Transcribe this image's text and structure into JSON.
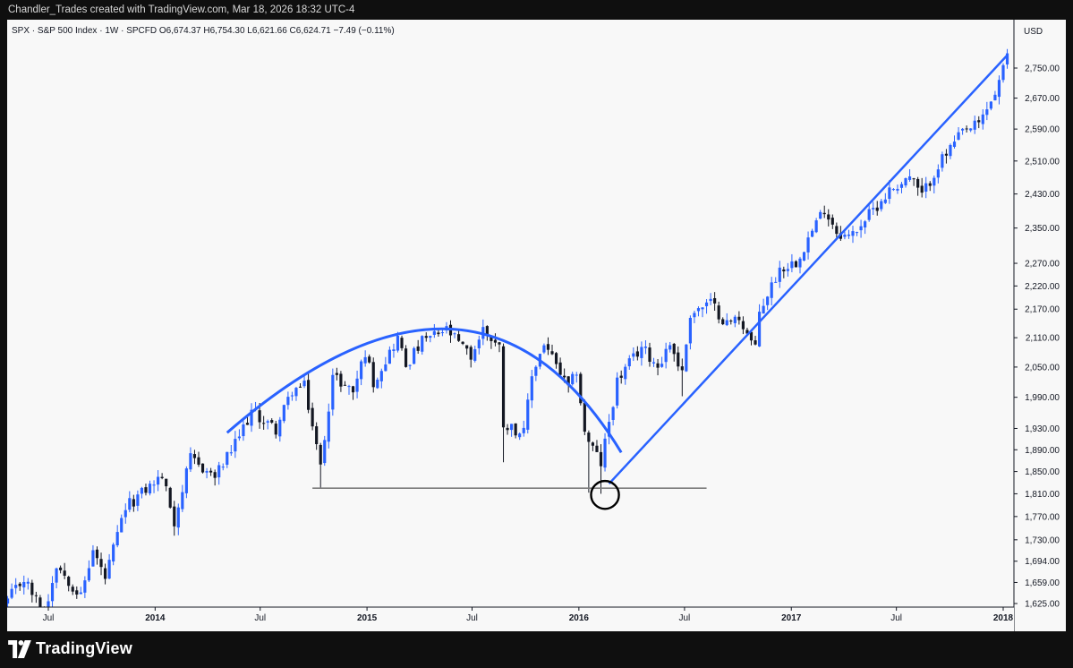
{
  "watermark": "Chandler_Trades created with TradingView.com, Mar 18, 2026 18:32 UTC-4",
  "info_bar": "SPX · S&P 500 Index · 1W · SPCFD  O6,674.37  H6,754.30  L6,621.66  C6,624.71  −7.49 (−0.11%)",
  "currency": "USD",
  "brand": "TradingView",
  "colors": {
    "up": "#2962ff",
    "down": "#131722",
    "trendline": "#2962ff",
    "support": "#7c7c7c",
    "background": "#f8f8f8"
  },
  "chart_data": {
    "type": "candlestick",
    "symbol": "SPX",
    "interval": "1W",
    "y_scale": "log",
    "ylim": [
      1625,
      2840
    ],
    "y_ticks": [
      1625,
      1659,
      1694,
      1730,
      1770,
      1810,
      1850,
      1890,
      1930,
      1990,
      2050,
      2110,
      2170,
      2220,
      2270,
      2350,
      2430,
      2510,
      2590,
      2670,
      2750
    ],
    "y_tick_labels": [
      "1,625.00",
      "1,659.00",
      "1,694.00",
      "1,730.00",
      "1,770.00",
      "1,810.00",
      "1,850.00",
      "1,890.00",
      "1,930.00",
      "1,990.00",
      "2,050.00",
      "2,110.00",
      "2,170.00",
      "2,220.00",
      "2,270.00",
      "2,350.00",
      "2,430.00",
      "2,510.00",
      "2,590.00",
      "2,670.00",
      "2,750.00"
    ],
    "x_ticks": [
      {
        "label": "Jul",
        "date": "2013-07-01",
        "bold": false
      },
      {
        "label": "2014",
        "date": "2014-01-01",
        "bold": true
      },
      {
        "label": "Jul",
        "date": "2014-07-01",
        "bold": false
      },
      {
        "label": "2015",
        "date": "2015-01-01",
        "bold": true
      },
      {
        "label": "Jul",
        "date": "2015-07-01",
        "bold": false
      },
      {
        "label": "2016",
        "date": "2016-01-01",
        "bold": true
      },
      {
        "label": "Jul",
        "date": "2016-07-01",
        "bold": false
      },
      {
        "label": "2017",
        "date": "2017-01-01",
        "bold": true
      },
      {
        "label": "Jul",
        "date": "2017-07-01",
        "bold": false
      },
      {
        "label": "2018",
        "date": "2018-01-01",
        "bold": true
      }
    ],
    "path": [
      [
        "2013-04-22",
        1630
      ],
      [
        "2013-05-20",
        1665
      ],
      [
        "2013-06-24",
        1606
      ],
      [
        "2013-07-15",
        1690
      ],
      [
        "2013-08-26",
        1636
      ],
      [
        "2013-09-16",
        1712
      ],
      [
        "2013-10-07",
        1665
      ],
      [
        "2013-11-11",
        1785
      ],
      [
        "2013-12-16",
        1818
      ],
      [
        "2014-01-13",
        1842
      ],
      [
        "2014-02-03",
        1761
      ],
      [
        "2014-03-03",
        1873
      ],
      [
        "2014-04-14",
        1840
      ],
      [
        "2014-05-19",
        1900
      ],
      [
        "2014-06-16",
        1962
      ],
      [
        "2014-07-28",
        1928
      ],
      [
        "2014-08-25",
        2003
      ],
      [
        "2014-09-15",
        2011
      ],
      [
        "2014-10-13",
        1858
      ],
      [
        "2014-11-03",
        2032
      ],
      [
        "2014-12-08",
        2002
      ],
      [
        "2014-12-29",
        2081
      ],
      [
        "2015-01-12",
        2020
      ],
      [
        "2015-02-23",
        2110
      ],
      [
        "2015-03-09",
        2053
      ],
      [
        "2015-04-06",
        2102
      ],
      [
        "2015-05-18",
        2126
      ],
      [
        "2015-06-29",
        2070
      ],
      [
        "2015-07-20",
        2128
      ],
      [
        "2015-08-17",
        2090
      ],
      [
        "2015-08-24",
        1940
      ],
      [
        "2015-09-28",
        1920
      ],
      [
        "2015-10-12",
        2033
      ],
      [
        "2015-11-02",
        2099
      ],
      [
        "2015-12-14",
        2005
      ],
      [
        "2015-12-28",
        2043
      ],
      [
        "2016-01-11",
        1921
      ],
      [
        "2016-02-08",
        1864
      ],
      [
        "2016-03-07",
        2022
      ],
      [
        "2016-04-18",
        2091
      ],
      [
        "2016-05-16",
        2052
      ],
      [
        "2016-06-06",
        2099
      ],
      [
        "2016-06-27",
        2037
      ],
      [
        "2016-07-11",
        2161
      ],
      [
        "2016-08-15",
        2183
      ],
      [
        "2016-09-12",
        2139
      ],
      [
        "2016-10-03",
        2153
      ],
      [
        "2016-10-31",
        2085
      ],
      [
        "2016-11-07",
        2164
      ],
      [
        "2016-12-12",
        2258
      ],
      [
        "2017-01-09",
        2274
      ],
      [
        "2017-02-27",
        2396
      ],
      [
        "2017-03-20",
        2343
      ],
      [
        "2017-04-10",
        2328
      ],
      [
        "2017-05-15",
        2381
      ],
      [
        "2017-06-19",
        2438
      ],
      [
        "2017-07-24",
        2472
      ],
      [
        "2017-08-14",
        2425
      ],
      [
        "2017-09-11",
        2500
      ],
      [
        "2017-10-23",
        2581
      ],
      [
        "2017-11-20",
        2602
      ],
      [
        "2017-12-18",
        2683
      ],
      [
        "2018-01-15",
        2810
      ],
      [
        "2018-01-26",
        2872
      ]
    ],
    "annotations": {
      "arc": {
        "points": [
          [
            "2014-05-05",
            1922
          ],
          [
            "2015-05-25",
            2128
          ],
          [
            "2016-03-14",
            1885
          ]
        ]
      },
      "support": {
        "from": "2014-09-29",
        "to": "2016-08-08",
        "y": 1820
      },
      "uptrend": {
        "from": "2016-02-22",
        "from_y": 1828,
        "to": "2018-01-08",
        "to_y": 2785
      },
      "circle": {
        "date": "2016-02-15",
        "y": 1808,
        "radius_days": 24
      }
    }
  }
}
